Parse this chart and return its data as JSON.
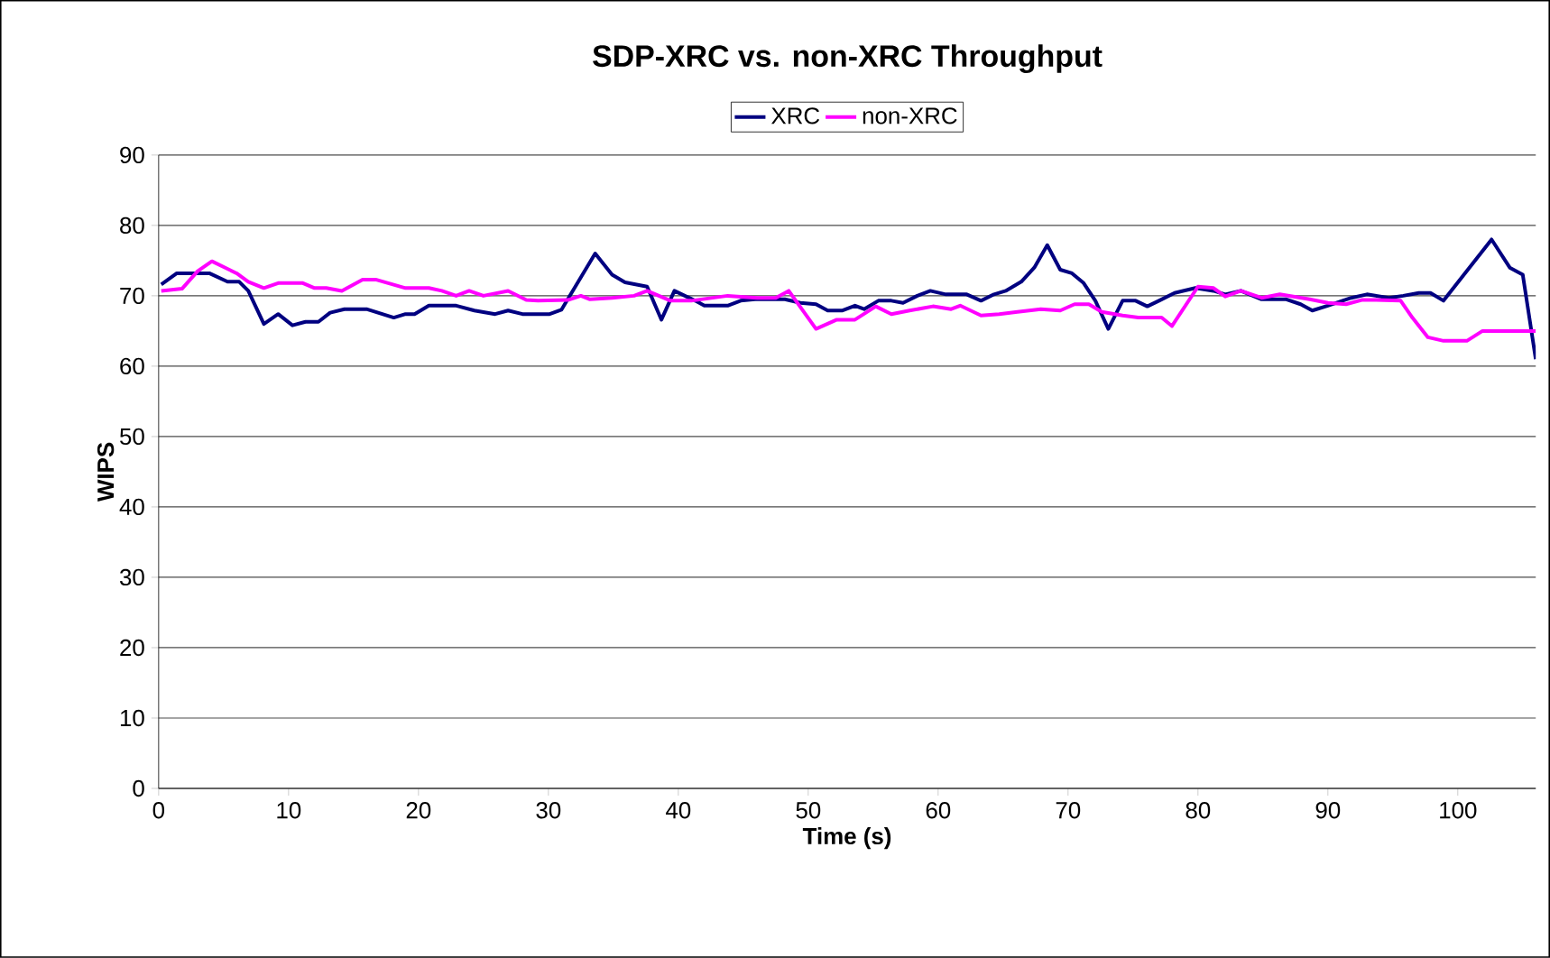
{
  "chart_data": {
    "type": "line",
    "title": "SDP-XRC vs. non-XRC Throughput",
    "xlabel": "Time (s)",
    "ylabel": "WIPS",
    "xlim": [
      0,
      106
    ],
    "xticks": [
      0,
      10,
      20,
      30,
      40,
      50,
      60,
      70,
      80,
      90,
      100
    ],
    "ylim": [
      0,
      90
    ],
    "yticks": [
      0,
      10,
      20,
      30,
      40,
      50,
      60,
      70,
      80,
      90
    ],
    "grid": "y",
    "legend": "top",
    "marker": "none",
    "line_style": "solid",
    "series": [
      {
        "name": "XRC",
        "color": "#000080",
        "x": [
          0.2,
          1.4,
          3.9,
          5.3,
          6.2,
          6.9,
          8.1,
          9.2,
          10.3,
          11.3,
          12.3,
          13.2,
          14.3,
          16,
          18.1,
          19,
          19.7,
          20.8,
          22.9,
          24.3,
          25.9,
          26.9,
          28,
          30.1,
          31,
          33.6,
          34.9,
          35.9,
          37.6,
          38.7,
          39.7,
          41.3,
          42,
          43.8,
          44.8,
          45.9,
          48.2,
          49.4,
          50.6,
          51.5,
          52.6,
          53.6,
          54.3,
          55.4,
          56.4,
          57.3,
          58.4,
          59.4,
          60.6,
          62.2,
          63.3,
          64.3,
          65.2,
          66.4,
          67.4,
          68.4,
          69.4,
          70.3,
          71.2,
          72.1,
          73.1,
          74.2,
          75.2,
          76.1,
          77,
          78.2,
          79.8,
          81.2,
          82.1,
          83.3,
          84.9,
          86.8,
          87.9,
          88.8,
          90,
          91.8,
          93,
          94.7,
          95.8,
          97,
          97.9,
          98.9,
          102.6,
          104,
          105,
          106
        ],
        "values": [
          71.6,
          73.2,
          73.2,
          72,
          72,
          70.7,
          66,
          67.4,
          65.8,
          66.3,
          66.3,
          67.6,
          68.1,
          68.1,
          66.9,
          67.4,
          67.4,
          68.6,
          68.6,
          67.9,
          67.4,
          67.9,
          67.4,
          67.4,
          68,
          76,
          73,
          71.9,
          71.3,
          66.6,
          70.7,
          69.3,
          68.6,
          68.6,
          69.3,
          69.5,
          69.5,
          69,
          68.8,
          67.9,
          67.9,
          68.6,
          68.1,
          69.3,
          69.3,
          69,
          70,
          70.7,
          70.2,
          70.2,
          69.3,
          70.2,
          70.7,
          72,
          74,
          77.2,
          73.7,
          73.2,
          71.8,
          69.3,
          65.3,
          69.3,
          69.3,
          68.5,
          69.3,
          70.4,
          71.1,
          70.7,
          70.2,
          70.7,
          69.5,
          69.5,
          68.8,
          67.9,
          68.6,
          69.7,
          70.2,
          69.7,
          70,
          70.4,
          70.4,
          69.3,
          78,
          74,
          73,
          61
        ]
      },
      {
        "name": "non-XRC",
        "color": "#ff00ff",
        "x": [
          0.2,
          1.8,
          3,
          4.1,
          6,
          6.9,
          8.1,
          9.2,
          11.1,
          12,
          12.9,
          14.1,
          15.7,
          16.7,
          19,
          20.8,
          21.8,
          22.9,
          23.9,
          25,
          26.9,
          28.3,
          29.2,
          31.5,
          32.5,
          33.2,
          34.9,
          36.6,
          37.6,
          39.4,
          41,
          43.8,
          46.1,
          47.5,
          48.5,
          50.6,
          52.2,
          53.6,
          55.2,
          56.4,
          57.8,
          59.6,
          61,
          61.7,
          63.3,
          64.7,
          66.1,
          67.9,
          69.4,
          70.5,
          71.6,
          72.6,
          74.2,
          75.4,
          77.2,
          78,
          80,
          81.2,
          82.1,
          83.3,
          84.9,
          86.3,
          88.6,
          90,
          91.4,
          92.6,
          93.7,
          95.6,
          96.5,
          97.7,
          98.9,
          100.7,
          101.9,
          103.5,
          106
        ],
        "values": [
          70.7,
          71,
          73.5,
          74.9,
          73.2,
          72,
          71.1,
          71.8,
          71.8,
          71.1,
          71.1,
          70.7,
          72.3,
          72.3,
          71.1,
          71.1,
          70.7,
          70,
          70.7,
          70,
          70.7,
          69.4,
          69.3,
          69.4,
          70,
          69.5,
          69.7,
          70,
          70.7,
          69.3,
          69.3,
          70,
          69.7,
          69.7,
          70.7,
          65.3,
          66.6,
          66.6,
          68.5,
          67.4,
          67.9,
          68.5,
          68.1,
          68.6,
          67.2,
          67.4,
          67.7,
          68.1,
          67.9,
          68.8,
          68.8,
          67.7,
          67.2,
          66.9,
          66.9,
          65.7,
          71.3,
          71.1,
          69.9,
          70.7,
          69.7,
          70.2,
          69.5,
          69,
          68.8,
          69.4,
          69.4,
          69.3,
          66.9,
          64.1,
          63.6,
          63.6,
          65,
          65,
          65
        ]
      }
    ]
  }
}
